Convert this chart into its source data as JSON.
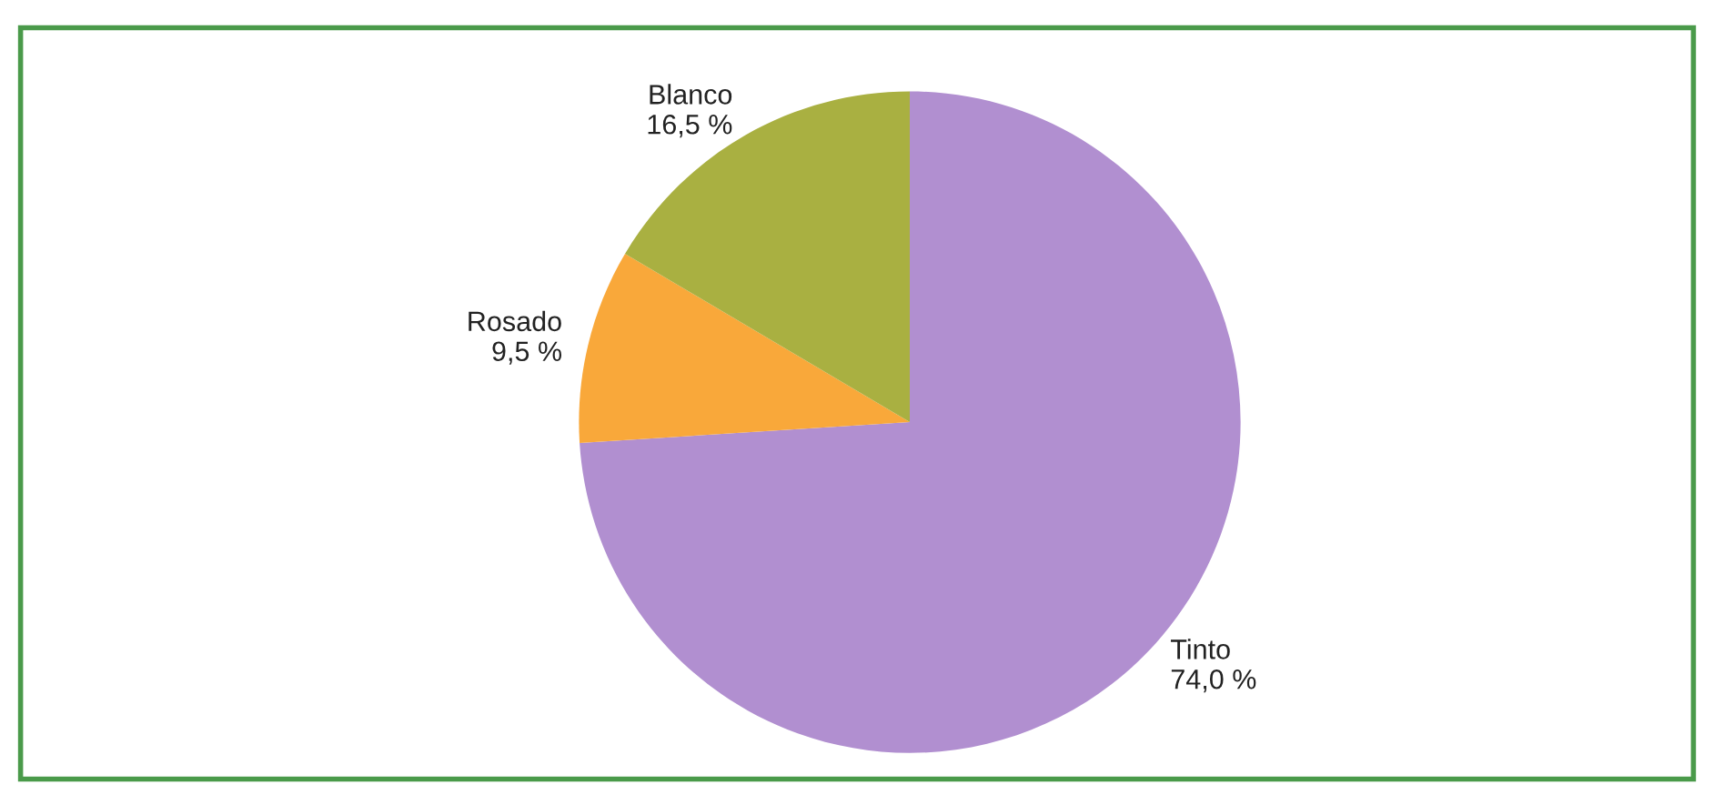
{
  "chart_data": {
    "type": "pie",
    "categories": [
      "Tinto",
      "Rosado",
      "Blanco"
    ],
    "values": [
      74.0,
      9.5,
      16.5
    ],
    "value_labels": [
      "74,0 %",
      "9,5 %",
      "16,5 %"
    ],
    "colors": [
      "#b18fd0",
      "#f9a83a",
      "#a9b041"
    ]
  }
}
